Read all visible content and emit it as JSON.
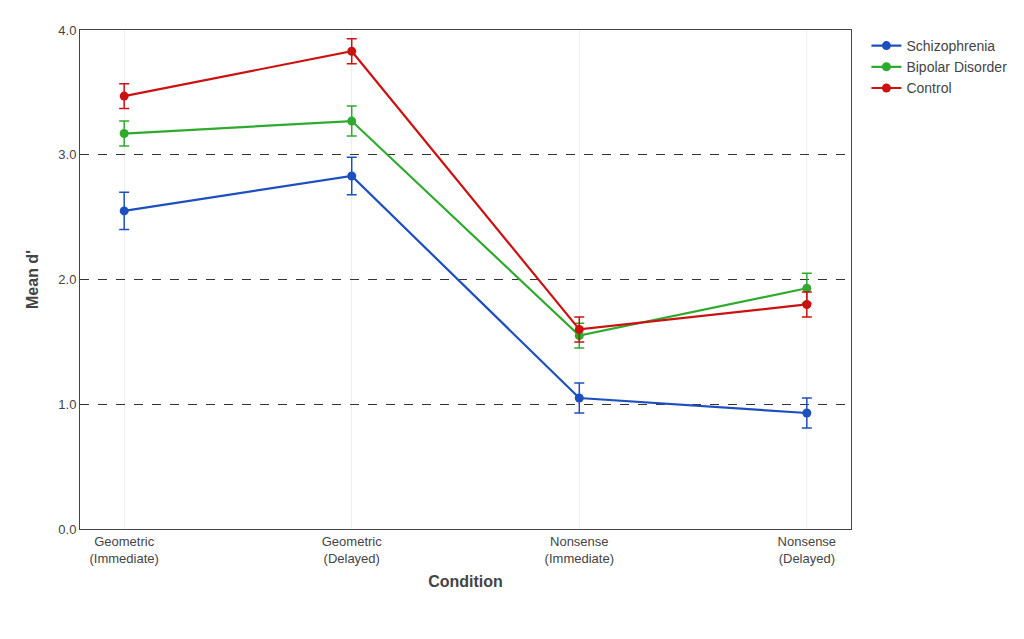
{
  "chart_data": {
    "type": "line",
    "xlabel": "Condition",
    "ylabel": "Mean d'",
    "categories": [
      "Geometric\n(Immediate)",
      "Geometric\n(Delayed)",
      "Nonsense\n(Immediate)",
      "Nonsense\n(Delayed)"
    ],
    "series": [
      {
        "name": "Schizophrenia",
        "color": "#1E4FBF",
        "values": [
          2.55,
          2.83,
          1.05,
          0.93
        ],
        "yerr": [
          0.15,
          0.15,
          0.12,
          0.12
        ]
      },
      {
        "name": "Bipolar Disorder",
        "color": "#2EAA2E",
        "values": [
          3.17,
          3.27,
          1.55,
          1.93
        ],
        "yerr": [
          0.1,
          0.12,
          0.1,
          0.12
        ]
      },
      {
        "name": "Control",
        "color": "#CC1111",
        "values": [
          3.47,
          3.83,
          1.6,
          1.8
        ],
        "yerr": [
          0.1,
          0.1,
          0.1,
          0.1
        ]
      }
    ],
    "ylim": [
      0.0,
      4.0
    ],
    "yticks": [
      {
        "value": 0,
        "label": "0.0"
      },
      {
        "value": 1,
        "label": "1.0"
      },
      {
        "value": 2,
        "label": "2.0"
      },
      {
        "value": 3,
        "label": "3.0"
      },
      {
        "value": 4,
        "label": "4.0"
      }
    ],
    "grid": true,
    "legend": "right",
    "marker": "circle",
    "line_style": "solid"
  }
}
